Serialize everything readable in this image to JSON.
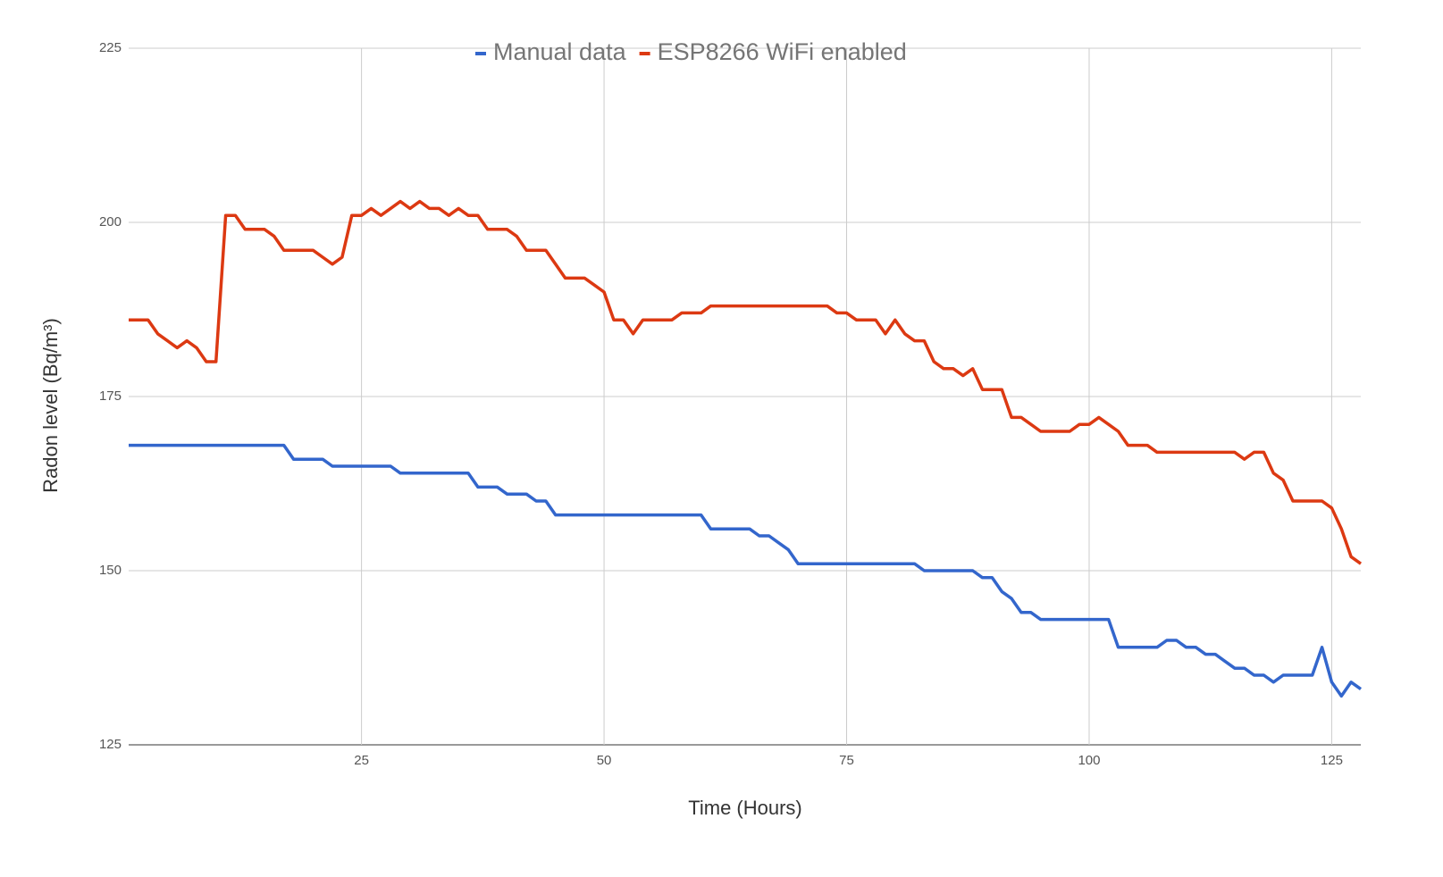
{
  "chart_data": {
    "type": "line",
    "x_label": "Time (Hours)",
    "y_label": "Radon level (Bq/m³)",
    "x": [
      1,
      2,
      3,
      4,
      5,
      6,
      7,
      8,
      9,
      10,
      11,
      12,
      13,
      14,
      15,
      16,
      17,
      18,
      19,
      20,
      21,
      22,
      23,
      24,
      25,
      26,
      27,
      28,
      29,
      30,
      31,
      32,
      33,
      34,
      35,
      36,
      37,
      38,
      39,
      40,
      41,
      42,
      43,
      44,
      45,
      46,
      47,
      48,
      49,
      50,
      51,
      52,
      53,
      54,
      55,
      56,
      57,
      58,
      59,
      60,
      61,
      62,
      63,
      64,
      65,
      66,
      67,
      68,
      69,
      70,
      71,
      72,
      73,
      74,
      75,
      76,
      77,
      78,
      79,
      80,
      81,
      82,
      83,
      84,
      85,
      86,
      87,
      88,
      89,
      90,
      91,
      92,
      93,
      94,
      95,
      96,
      97,
      98,
      99,
      100,
      101,
      102,
      103,
      104,
      105,
      106,
      107,
      108,
      109,
      110,
      111,
      112,
      113,
      114,
      115,
      116,
      117,
      118,
      119,
      120,
      121,
      122,
      123,
      124,
      125,
      126,
      127,
      128
    ],
    "series": [
      {
        "name": "Manual data",
        "color": "#3366cc",
        "values": [
          168,
          168,
          168,
          168,
          168,
          168,
          168,
          168,
          168,
          168,
          168,
          168,
          168,
          168,
          168,
          168,
          168,
          166,
          166,
          166,
          166,
          165,
          165,
          165,
          165,
          165,
          165,
          165,
          164,
          164,
          164,
          164,
          164,
          164,
          164,
          164,
          162,
          162,
          162,
          161,
          161,
          161,
          160,
          160,
          158,
          158,
          158,
          158,
          158,
          158,
          158,
          158,
          158,
          158,
          158,
          158,
          158,
          158,
          158,
          158,
          156,
          156,
          156,
          156,
          156,
          155,
          155,
          154,
          153,
          151,
          151,
          151,
          151,
          151,
          151,
          151,
          151,
          151,
          151,
          151,
          151,
          151,
          150,
          150,
          150,
          150,
          150,
          150,
          149,
          149,
          147,
          146,
          144,
          144,
          143,
          143,
          143,
          143,
          143,
          143,
          143,
          143,
          139,
          139,
          139,
          139,
          139,
          140,
          140,
          139,
          139,
          138,
          138,
          137,
          136,
          136,
          135,
          135,
          134,
          135,
          135,
          135,
          135,
          139,
          134,
          132,
          134,
          133
        ]
      },
      {
        "name": "ESP8266 WiFi enabled",
        "color": "#dc3912",
        "values": [
          186,
          186,
          186,
          184,
          183,
          182,
          183,
          182,
          180,
          180,
          201,
          201,
          199,
          199,
          199,
          198,
          196,
          196,
          196,
          196,
          195,
          194,
          195,
          201,
          201,
          202,
          201,
          202,
          203,
          202,
          203,
          202,
          202,
          201,
          202,
          201,
          201,
          199,
          199,
          199,
          198,
          196,
          196,
          196,
          194,
          192,
          192,
          192,
          191,
          190,
          186,
          186,
          184,
          186,
          186,
          186,
          186,
          187,
          187,
          187,
          188,
          188,
          188,
          188,
          188,
          188,
          188,
          188,
          188,
          188,
          188,
          188,
          188,
          187,
          187,
          186,
          186,
          186,
          184,
          186,
          184,
          183,
          183,
          180,
          179,
          179,
          178,
          179,
          176,
          176,
          176,
          172,
          172,
          171,
          170,
          170,
          170,
          170,
          171,
          171,
          172,
          171,
          170,
          168,
          168,
          168,
          167,
          167,
          167,
          167,
          167,
          167,
          167,
          167,
          167,
          166,
          167,
          167,
          164,
          163,
          160,
          160,
          160,
          160,
          159,
          156,
          152,
          151
        ]
      }
    ],
    "xlim": [
      1,
      128
    ],
    "ylim": [
      125,
      225
    ],
    "xticks": [
      25,
      50,
      75,
      100,
      125
    ],
    "yticks": [
      125,
      150,
      175,
      200,
      225
    ],
    "grid": true,
    "legend": "top"
  }
}
